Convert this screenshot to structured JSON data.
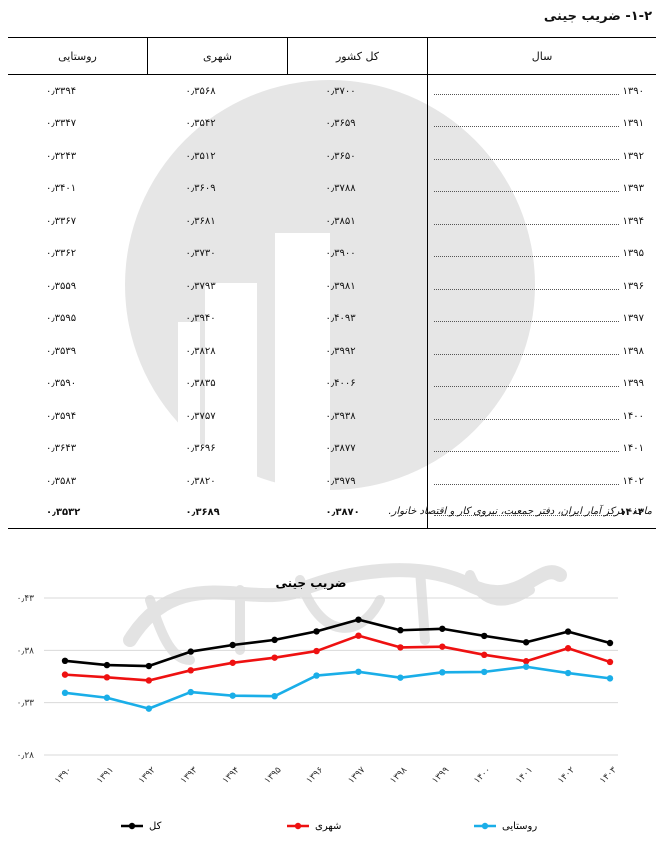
{
  "section_title": "۱-۲- ضریب جینی",
  "table": {
    "headers": [
      "سال",
      "کل کشور",
      "شهری",
      "روستایی"
    ],
    "rows": [
      {
        "year": "۱۳۹۰",
        "total": "۰٫۳۷۰۰",
        "urban": "۰٫۳۵۶۸",
        "rural": "۰٫۳۳۹۴"
      },
      {
        "year": "۱۳۹۱",
        "total": "۰٫۳۶۵۹",
        "urban": "۰٫۳۵۴۲",
        "rural": "۰٫۳۳۴۷"
      },
      {
        "year": "۱۳۹۲",
        "total": "۰٫۳۶۵۰",
        "urban": "۰٫۳۵۱۲",
        "rural": "۰٫۳۲۴۳"
      },
      {
        "year": "۱۳۹۳",
        "total": "۰٫۳۷۸۸",
        "urban": "۰٫۳۶۰۹",
        "rural": "۰٫۳۴۰۱"
      },
      {
        "year": "۱۳۹۴",
        "total": "۰٫۳۸۵۱",
        "urban": "۰٫۳۶۸۱",
        "rural": "۰٫۳۳۶۷"
      },
      {
        "year": "۱۳۹۵",
        "total": "۰٫۳۹۰۰",
        "urban": "۰٫۳۷۳۰",
        "rural": "۰٫۳۳۶۲"
      },
      {
        "year": "۱۳۹۶",
        "total": "۰٫۳۹۸۱",
        "urban": "۰٫۳۷۹۳",
        "rural": "۰٫۳۵۵۹"
      },
      {
        "year": "۱۳۹۷",
        "total": "۰٫۴۰۹۳",
        "urban": "۰٫۳۹۴۰",
        "rural": "۰٫۳۵۹۵"
      },
      {
        "year": "۱۳۹۸",
        "total": "۰٫۳۹۹۲",
        "urban": "۰٫۳۸۲۸",
        "rural": "۰٫۳۵۳۹"
      },
      {
        "year": "۱۳۹۹",
        "total": "۰٫۴۰۰۶",
        "urban": "۰٫۳۸۳۵",
        "rural": "۰٫۳۵۹۰"
      },
      {
        "year": "۱۴۰۰",
        "total": "۰٫۳۹۳۸",
        "urban": "۰٫۳۷۵۷",
        "rural": "۰٫۳۵۹۴"
      },
      {
        "year": "۱۴۰۱",
        "total": "۰٫۳۸۷۷",
        "urban": "۰٫۳۶۹۶",
        "rural": "۰٫۳۶۴۳"
      },
      {
        "year": "۱۴۰۲",
        "total": "۰٫۳۹۷۹",
        "urban": "۰٫۳۸۲۰",
        "rural": "۰٫۳۵۸۳"
      }
    ],
    "total_row": {
      "year": "۱۴۰۳",
      "total": "۰٫۳۸۷۰",
      "urban": "۰٫۳۶۸۹",
      "rural": "۰٫۳۵۳۲"
    }
  },
  "source_note": "ماخذ- مرکز آمار ایران، دفتر جمعیت، نیروی کار و اقتصاد خانوار.",
  "watermark_text": "مرکز آمار ایران",
  "chart_data": {
    "type": "line",
    "title": "ضریب جینی",
    "categories": [
      "۱۳۹۰",
      "۱۳۹۱",
      "۱۳۹۲",
      "۱۳۹۳",
      "۱۳۹۴",
      "۱۳۹۵",
      "۱۳۹۶",
      "۱۳۹۷",
      "۱۳۹۸",
      "۱۳۹۹",
      "۱۴۰۰",
      "۱۴۰۱",
      "۱۴۰۲",
      "۱۴۰۳"
    ],
    "ylim": [
      0.28,
      0.43
    ],
    "yticks": [
      0.28,
      0.33,
      0.38,
      0.43
    ],
    "ytick_labels": [
      "۰٫۲۸",
      "۰٫۳۳",
      "۰٫۳۸",
      "۰٫۴۳"
    ],
    "grid": true,
    "legend_position": "bottom",
    "series": [
      {
        "name": "کل",
        "color": "#000000",
        "values": [
          0.37,
          0.3659,
          0.365,
          0.3788,
          0.3851,
          0.39,
          0.3981,
          0.4093,
          0.3992,
          0.4006,
          0.3938,
          0.3877,
          0.3979,
          0.387
        ]
      },
      {
        "name": "شهری",
        "color": "#ee1111",
        "values": [
          0.3568,
          0.3542,
          0.3512,
          0.3609,
          0.3681,
          0.373,
          0.3793,
          0.394,
          0.3828,
          0.3835,
          0.3757,
          0.3696,
          0.382,
          0.3689
        ]
      },
      {
        "name": "روستایی",
        "color": "#1aaee8",
        "values": [
          0.3394,
          0.3347,
          0.3243,
          0.3401,
          0.3367,
          0.3362,
          0.3559,
          0.3595,
          0.3539,
          0.359,
          0.3594,
          0.3643,
          0.3583,
          0.3532
        ]
      }
    ]
  }
}
